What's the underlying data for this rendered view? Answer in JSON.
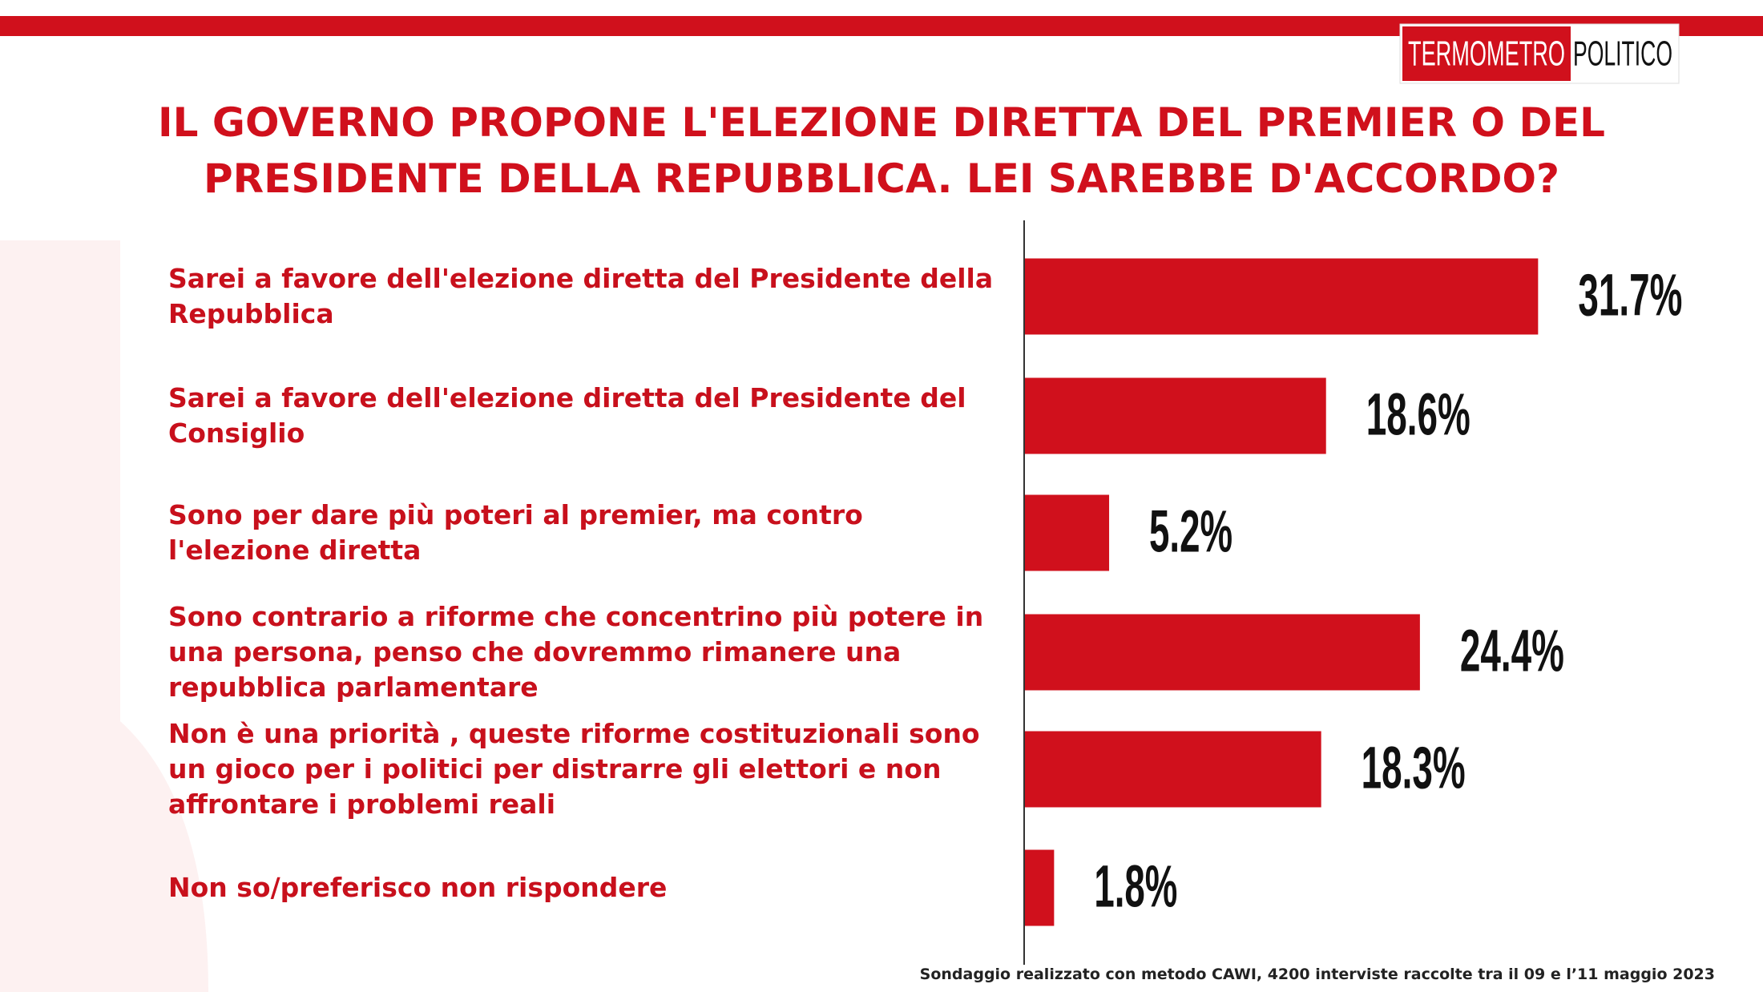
{
  "chart_data": {
    "type": "bar",
    "orientation": "horizontal",
    "title": "IL GOVERNO PROPONE L'ELEZIONE DIRETTA DEL PREMIER O DEL PRESIDENTE DELLA REPUBBLICA. LEI SAREBBE D'ACCORDO?",
    "brand": [
      "TERMOMETRO",
      "POLITICO"
    ],
    "categories": [
      "Sarei a favore dell'elezione diretta del Presidente della Repubblica",
      "Sarei a favore dell'elezione diretta del Presidente del Consiglio",
      "Sono per dare più poteri al premier, ma contro l'elezione diretta",
      "Sono contrario a riforme che concentrino più potere in una persona, penso che dovremmo rimanere una repubblica parlamentare",
      "Non è una priorità , queste riforme costituzionali sono un gioco per i politici per distrarre gli elettori e non affrontare i problemi reali",
      "Non so/preferisco non rispondere"
    ],
    "values": [
      31.7,
      18.6,
      5.2,
      24.4,
      18.3,
      1.8
    ],
    "value_labels": [
      "31.7%",
      "18.6%",
      "5.2%",
      "24.4%",
      "18.3%",
      "1.8%"
    ],
    "color": "#d0101c",
    "note": "Sondaggio realizzato con metodo CAWI, 4200 interviste raccolte tra il 09 e l’11 maggio 2023"
  }
}
